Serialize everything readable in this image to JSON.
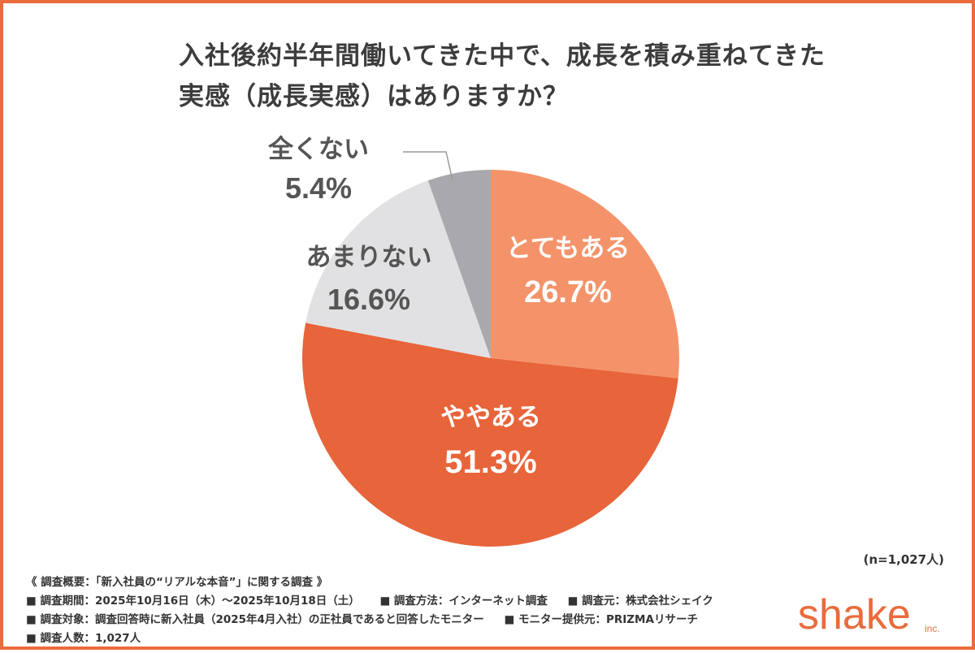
{
  "title_line1": "入社後約半年間働いてきた中で、成長を積み重ねてきた",
  "title_line2": "実感（成長実感）はありますか？",
  "sample_size": "(n=1,027人)",
  "notes": {
    "heading": "《 調査概要：「新入社員の“リアルな本音”」に関する調査 》",
    "period": "■ 調査期間：2025年10月16日（木）〜2025年10月18日（土）",
    "method": "■ 調査方法：インターネット調査",
    "source": "■ 調査元：株式会社シェイク",
    "target": "■ 調査対象：調査回答時に新入社員（2025年4月入社）の正社員であると回答したモニター",
    "monitor": "■ モニター提供元：PRIZMAリサーチ",
    "count": "■ 調査人数：1,027人"
  },
  "logo": {
    "text": "shake",
    "suffix": "inc."
  },
  "chart_data": {
    "type": "pie",
    "slices": [
      {
        "label": "とてもある",
        "value": 26.7,
        "display": "26.7%",
        "color": "#f4936a"
      },
      {
        "label": "ややある",
        "value": 51.3,
        "display": "51.3%",
        "color": "#e8643a"
      },
      {
        "label": "あまりない",
        "value": 16.6,
        "display": "16.6%",
        "color": "#e1e1e4"
      },
      {
        "label": "全くない",
        "value": 5.4,
        "display": "5.4%",
        "color": "#a9a9ad"
      }
    ],
    "start_angle_deg": 0,
    "direction": "clockwise"
  },
  "colors": {
    "accent": "#ea6b3c",
    "text": "#3c3c3c",
    "outside_label": "#555555"
  }
}
